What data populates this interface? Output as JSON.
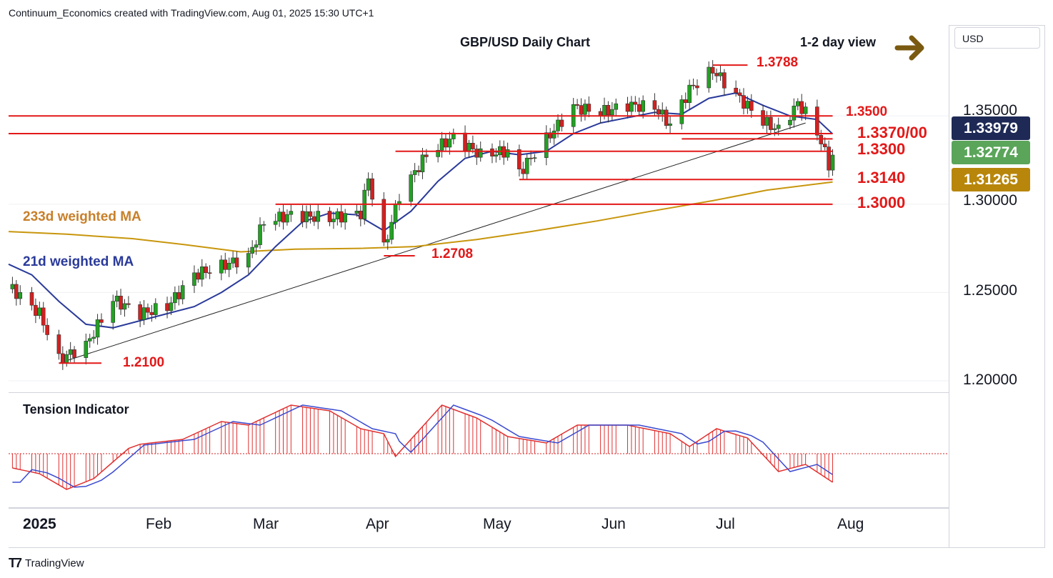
{
  "header": "Continuum_Economics created with TradingView.com, Aug 01, 2025 15:30 UTC+1",
  "chart_title": "GBP/USD Daily Chart",
  "view_label": "1-2 day view",
  "currency": "USD",
  "footer": "TradingView",
  "indicator_title": "Tension Indicator",
  "colors": {
    "up": "#22a222",
    "down": "#d42020",
    "level": "#e31818",
    "ma21": "#2a3a9a",
    "ma233": "#c8960c",
    "arrow": "#7a5a10"
  },
  "price_badges": [
    {
      "label": "1.33979",
      "color": "#1e2a55"
    },
    {
      "label": "1.32774",
      "color": "#5aa55a"
    },
    {
      "label": "1.31265",
      "color": "#b8860b"
    }
  ],
  "chart_data": {
    "type": "candlestick",
    "title": "GBP/USD Daily Chart",
    "y_ticks": [
      "1.35000",
      "1.30000",
      "1.25000",
      "1.20000"
    ],
    "ylim": [
      1.1935,
      1.4015
    ],
    "x_ticks": [
      "2025",
      "Feb",
      "Mar",
      "Apr",
      "May",
      "Jun",
      "Jul",
      "Aug"
    ],
    "x_range": [
      "2024-12-31",
      "2025-08-31"
    ],
    "levels": [
      {
        "label": "1.3788",
        "value": 1.3788,
        "from": "2025-07-01",
        "to": "2025-07-10"
      },
      {
        "label": "1.3500",
        "value": 1.35,
        "from": "2024-12-31",
        "to": "2025-08-01"
      },
      {
        "label": "1.3370/00",
        "value": 1.34,
        "from": "2024-12-31",
        "to": "2025-08-01"
      },
      {
        "label": "",
        "value": 1.337,
        "from": "2025-06-23",
        "to": "2025-08-01"
      },
      {
        "label": "1.3300",
        "value": 1.33,
        "from": "2025-04-10",
        "to": "2025-08-01"
      },
      {
        "label": "1.3140",
        "value": 1.314,
        "from": "2025-05-12",
        "to": "2025-08-01"
      },
      {
        "label": "1.3000",
        "value": 1.3,
        "from": "2025-03-10",
        "to": "2025-08-01"
      },
      {
        "label": "1.2708",
        "value": 1.2708,
        "from": "2025-04-07",
        "to": "2025-04-15"
      },
      {
        "label": "1.2100",
        "value": 1.21,
        "from": "2025-01-13",
        "to": "2025-01-24"
      }
    ],
    "trendline": {
      "from": [
        "2025-01-13",
        1.21
      ],
      "to": [
        "2025-07-25",
        1.346
      ]
    },
    "series": [
      {
        "name": "233d weighted MA",
        "x": [
          "2024-12-31",
          "2025-01-15",
          "2025-02-01",
          "2025-02-15",
          "2025-03-01",
          "2025-03-15",
          "2025-04-01",
          "2025-04-15",
          "2025-05-01",
          "2025-05-15",
          "2025-06-01",
          "2025-06-15",
          "2025-07-01",
          "2025-07-15",
          "2025-08-01"
        ],
        "values": [
          1.2845,
          1.283,
          1.2805,
          1.277,
          1.273,
          1.2745,
          1.275,
          1.276,
          1.28,
          1.2845,
          1.2905,
          1.296,
          1.302,
          1.308,
          1.3126
        ]
      },
      {
        "name": "21d weighted MA",
        "x": [
          "2024-12-31",
          "2025-01-06",
          "2025-01-13",
          "2025-01-20",
          "2025-01-27",
          "2025-02-03",
          "2025-02-10",
          "2025-02-17",
          "2025-02-24",
          "2025-03-03",
          "2025-03-10",
          "2025-03-17",
          "2025-03-24",
          "2025-03-31",
          "2025-04-07",
          "2025-04-14",
          "2025-04-21",
          "2025-04-28",
          "2025-05-05",
          "2025-05-12",
          "2025-05-19",
          "2025-05-26",
          "2025-06-02",
          "2025-06-09",
          "2025-06-16",
          "2025-06-23",
          "2025-06-30",
          "2025-07-07",
          "2025-07-14",
          "2025-07-21",
          "2025-07-28",
          "2025-08-01"
        ],
        "values": [
          1.266,
          1.26,
          1.245,
          1.232,
          1.23,
          1.234,
          1.238,
          1.242,
          1.25,
          1.26,
          1.276,
          1.29,
          1.295,
          1.294,
          1.285,
          1.296,
          1.313,
          1.326,
          1.33,
          1.328,
          1.33,
          1.34,
          1.346,
          1.349,
          1.352,
          1.351,
          1.36,
          1.363,
          1.356,
          1.35,
          1.348,
          1.3398
        ]
      }
    ]
  }
}
